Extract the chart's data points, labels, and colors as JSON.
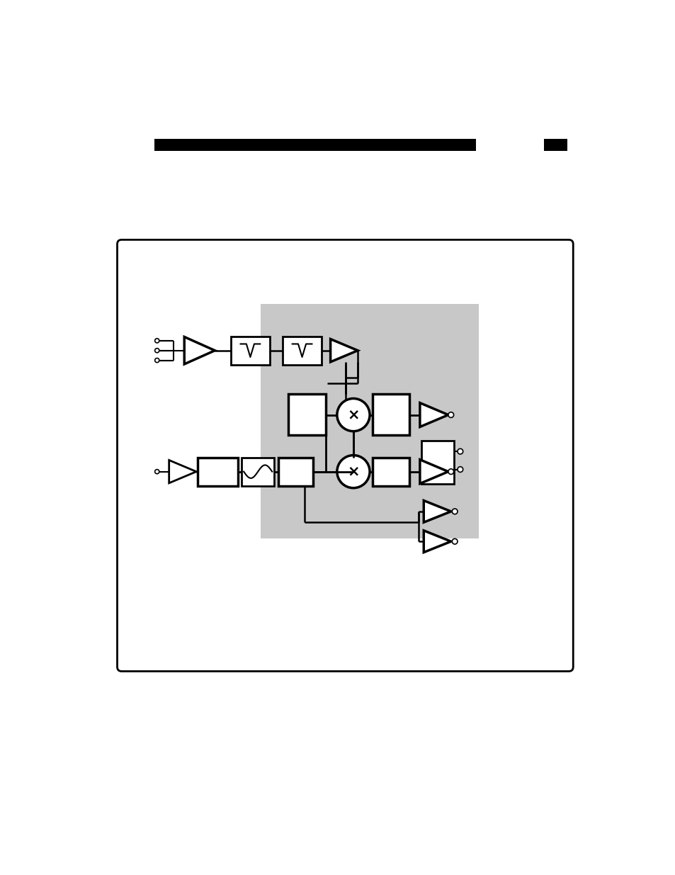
{
  "fig_width": 9.54,
  "fig_height": 12.35,
  "bg_color": "#ffffff",
  "gray_color": "#c8c8c8"
}
